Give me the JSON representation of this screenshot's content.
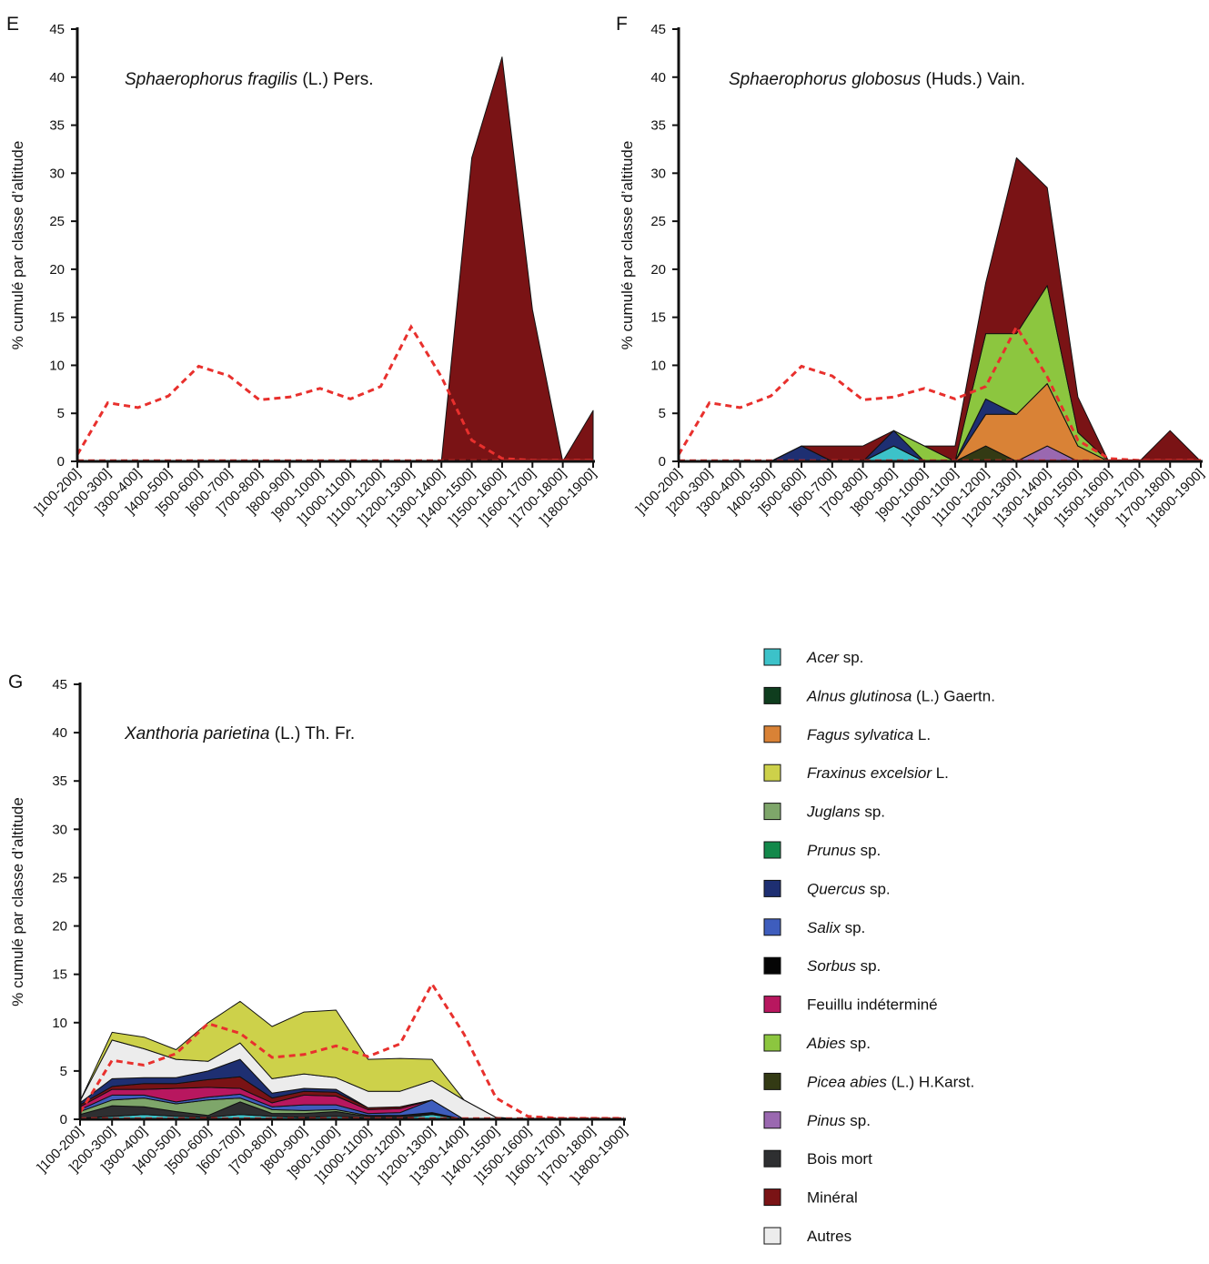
{
  "colors": {
    "Acer": "#3cc2c9",
    "Alnus": "#0f3d1e",
    "Fagus": "#d98236",
    "Fraxinus": "#cdd14a",
    "Juglans": "#7ea66a",
    "Prunus": "#12884a",
    "Quercus": "#1e2f72",
    "Salix": "#3e5dbd",
    "Sorbus": "#050505",
    "Feuillu": "#b8175f",
    "Abies": "#8cc63f",
    "Picea": "#333a14",
    "Pinus": "#9a68b0",
    "Boismort": "#2e2f31",
    "Mineral": "#7a1315",
    "Autres": "#ececec",
    "reference_line": "#e8302d"
  },
  "legend": [
    {
      "key": "Acer",
      "italic": "Acer",
      "rest": " sp."
    },
    {
      "key": "Alnus",
      "italic": "Alnus glutinosa",
      "rest": " (L.) Gaertn."
    },
    {
      "key": "Fagus",
      "italic": "Fagus sylvatica",
      "rest": " L."
    },
    {
      "key": "Fraxinus",
      "italic": "Fraxinus excelsior",
      "rest": " L."
    },
    {
      "key": "Juglans",
      "italic": "Juglans",
      "rest": " sp."
    },
    {
      "key": "Prunus",
      "italic": "Prunus",
      "rest": " sp."
    },
    {
      "key": "Quercus",
      "italic": "Quercus",
      "rest": " sp."
    },
    {
      "key": "Salix",
      "italic": "Salix",
      "rest": " sp."
    },
    {
      "key": "Sorbus",
      "italic": "Sorbus",
      "rest": " sp."
    },
    {
      "key": "Feuillu",
      "italic": "",
      "rest": "Feuillu indéterminé"
    },
    {
      "key": "Abies",
      "italic": "Abies",
      "rest": " sp."
    },
    {
      "key": "Picea",
      "italic": "Picea abies",
      "rest": " (L.) H.Karst."
    },
    {
      "key": "Pinus",
      "italic": "Pinus",
      "rest": " sp."
    },
    {
      "key": "Boismort",
      "italic": "",
      "rest": "Bois mort"
    },
    {
      "key": "Mineral",
      "italic": "",
      "rest": "Minéral"
    },
    {
      "key": "Autres",
      "italic": "",
      "rest": "Autres"
    }
  ],
  "chart_data": [
    {
      "panel": "E",
      "type": "area",
      "stacked": true,
      "title_italic": "Sphaerophorus fragilis",
      "title_rest": " (L.) Pers.",
      "ylabel": "% cumulé par classe d’altitude",
      "ylim": [
        0,
        45
      ],
      "yticks": [
        0,
        5,
        10,
        15,
        20,
        25,
        30,
        35,
        40,
        45
      ],
      "categories": [
        "]100-200]",
        "]200-300]",
        "]300-400]",
        "]400-500]",
        "]500-600]",
        "]600-700]",
        "]700-800]",
        "]800-900]",
        "]900-1000]",
        "]1000-1100]",
        "]1100-1200]",
        "]1200-1300]",
        "]1300-1400]",
        "]1400-1500]",
        "]1500-1600]",
        "]1600-1700]",
        "]1700-1800]",
        "]1800-1900]"
      ],
      "series": [
        {
          "name": "Minéral",
          "key": "Mineral",
          "values": [
            0,
            0,
            0,
            0,
            0,
            0,
            0,
            0,
            0,
            0,
            0,
            0,
            0,
            31.6,
            42.1,
            15.8,
            0,
            5.3
          ]
        }
      ],
      "reference_line": [
        0.7,
        6.1,
        5.6,
        6.8,
        9.9,
        8.9,
        6.4,
        6.7,
        7.6,
        6.5,
        7.8,
        14.0,
        8.8,
        2.2,
        0.3,
        0.1,
        0.1,
        0.1
      ]
    },
    {
      "panel": "F",
      "type": "area",
      "stacked": true,
      "title_italic": "Sphaerophorus globosus",
      "title_rest": " (Huds.) Vain.",
      "ylabel": "% cumulé par classe d’altitude",
      "ylim": [
        0,
        45
      ],
      "yticks": [
        0,
        5,
        10,
        15,
        20,
        25,
        30,
        35,
        40,
        45
      ],
      "categories": [
        "]100-200]",
        "]200-300]",
        "]300-400]",
        "]400-500]",
        "]500-600]",
        "]600-700]",
        "]700-800]",
        "]800-900]",
        "]900-1000]",
        "]1000-1100]",
        "]1100-1200]",
        "]1200-1300]",
        "]1300-1400]",
        "]1400-1500]",
        "]1500-1600]",
        "]1600-1700]",
        "]1700-1800]",
        "]1800-1900]"
      ],
      "series": [
        {
          "name": "Acer sp.",
          "key": "Acer",
          "values": [
            0,
            0,
            0,
            0,
            0,
            0,
            0,
            1.6,
            0,
            0,
            0,
            0,
            0,
            0,
            0,
            0,
            0,
            0
          ]
        },
        {
          "name": "Pinus sp.",
          "key": "Pinus",
          "values": [
            0,
            0,
            0,
            0,
            0,
            0,
            0,
            0,
            0,
            0,
            0,
            0,
            1.6,
            0,
            0,
            0,
            0,
            0
          ]
        },
        {
          "name": "Picea abies (L.) H.Karst.",
          "key": "Picea",
          "values": [
            0,
            0,
            0,
            0,
            0,
            0,
            0,
            0,
            0,
            0,
            1.6,
            0,
            0,
            0,
            0,
            0,
            0,
            0
          ]
        },
        {
          "name": "Fagus sylvatica L.",
          "key": "Fagus",
          "values": [
            0,
            0,
            0,
            0,
            0,
            0,
            0,
            0,
            0,
            0,
            3.3,
            4.9,
            6.5,
            1.6,
            0,
            0,
            0,
            0
          ]
        },
        {
          "name": "Quercus sp.",
          "key": "Quercus",
          "values": [
            0,
            0,
            0,
            0,
            1.6,
            0,
            0,
            1.6,
            0,
            0,
            1.6,
            0,
            0,
            0,
            0,
            0,
            0,
            0
          ]
        },
        {
          "name": "Abies sp.",
          "key": "Abies",
          "values": [
            0,
            0,
            0,
            0,
            0,
            0,
            0,
            0,
            1.6,
            0,
            6.8,
            8.4,
            10.2,
            1.4,
            0,
            0,
            0,
            0
          ]
        },
        {
          "name": "Minéral",
          "key": "Mineral",
          "values": [
            0,
            0,
            0,
            0,
            0,
            1.6,
            1.6,
            0,
            0,
            1.6,
            5.3,
            18.3,
            10.2,
            3.7,
            0,
            0,
            3.2,
            0
          ]
        }
      ],
      "reference_line": [
        0.7,
        6.1,
        5.6,
        6.8,
        9.9,
        8.9,
        6.4,
        6.7,
        7.6,
        6.5,
        7.8,
        14.0,
        8.8,
        2.2,
        0.3,
        0.1,
        0.1,
        0.1
      ]
    },
    {
      "panel": "G",
      "type": "area",
      "stacked": true,
      "title_italic": "Xanthoria parietina",
      "title_rest": " (L.) Th. Fr.",
      "ylabel": "% cumulé par classe d’altitude",
      "ylim": [
        0,
        45
      ],
      "yticks": [
        0,
        5,
        10,
        15,
        20,
        25,
        30,
        35,
        40,
        45
      ],
      "categories": [
        "]100-200]",
        "]200-300]",
        "]300-400]",
        "]400-500]",
        "]500-600]",
        "]600-700]",
        "]700-800]",
        "]800-900]",
        "]900-1000]",
        "]1000-1100]",
        "]1100-1200]",
        "]1200-1300]",
        "]1300-1400]",
        "]1400-1500]",
        "]1500-1600]",
        "]1600-1700]",
        "]1700-1800]",
        "]1800-1900]"
      ],
      "series": [
        {
          "name": "Acer sp.",
          "key": "Acer",
          "values": [
            0.1,
            0.3,
            0.5,
            0.3,
            0.2,
            0.5,
            0.3,
            0.2,
            0.3,
            0.1,
            0.1,
            0.5,
            0,
            0,
            0,
            0,
            0,
            0
          ]
        },
        {
          "name": "Bois mort",
          "key": "Boismort",
          "values": [
            0.4,
            1.1,
            0.8,
            0.5,
            0.2,
            1.3,
            0.3,
            0.4,
            0.5,
            0.2,
            0.2,
            0.1,
            0,
            0,
            0,
            0,
            0,
            0
          ]
        },
        {
          "name": "Juglans sp.",
          "key": "Juglans",
          "values": [
            0.3,
            0.6,
            0.9,
            0.8,
            1.6,
            0.4,
            0.4,
            0.3,
            0.2,
            0.1,
            0.1,
            0.1,
            0,
            0,
            0,
            0,
            0,
            0
          ]
        },
        {
          "name": "Salix sp.",
          "key": "Salix",
          "values": [
            0.2,
            0.5,
            0.3,
            0.2,
            0.3,
            0.4,
            0.3,
            0.6,
            0.5,
            0.2,
            0.3,
            1.3,
            0,
            0,
            0,
            0,
            0,
            0
          ]
        },
        {
          "name": "Feuillu indéterminé",
          "key": "Feuillu",
          "values": [
            0.3,
            0.6,
            0.6,
            1.4,
            1.0,
            0.6,
            0.4,
            1.0,
            0.9,
            0.4,
            0.4,
            0,
            0,
            0,
            0,
            0,
            0,
            0
          ]
        },
        {
          "name": "Minéral",
          "key": "Mineral",
          "values": [
            0.2,
            0.3,
            0.6,
            0.5,
            0.8,
            1.2,
            0.5,
            0.4,
            0.4,
            0.2,
            0.2,
            0,
            0,
            0,
            0,
            0,
            0,
            0
          ]
        },
        {
          "name": "Quercus sp.",
          "key": "Quercus",
          "values": [
            0.2,
            0.8,
            0.6,
            0.6,
            0.9,
            1.8,
            0.5,
            0.3,
            0.3,
            0,
            0,
            0,
            0,
            0,
            0,
            0,
            0,
            0
          ]
        },
        {
          "name": "Autres",
          "key": "Autres",
          "values": [
            0.2,
            4.0,
            3.0,
            1.9,
            1.0,
            1.7,
            1.5,
            1.5,
            1.2,
            1.7,
            1.6,
            2.0,
            2.0,
            0.2,
            0,
            0,
            0,
            0
          ]
        },
        {
          "name": "Fraxinus excelsior L.",
          "key": "Fraxinus",
          "values": [
            0,
            0.8,
            1.2,
            1.0,
            4.0,
            4.3,
            5.4,
            6.4,
            7.0,
            3.3,
            3.4,
            2.2,
            0,
            0,
            0,
            0,
            0,
            0
          ]
        }
      ],
      "reference_line": [
        0.7,
        6.1,
        5.6,
        6.8,
        9.9,
        8.9,
        6.4,
        6.7,
        7.6,
        6.5,
        7.8,
        14.0,
        8.8,
        2.2,
        0.3,
        0.1,
        0.1,
        0.1
      ]
    }
  ]
}
